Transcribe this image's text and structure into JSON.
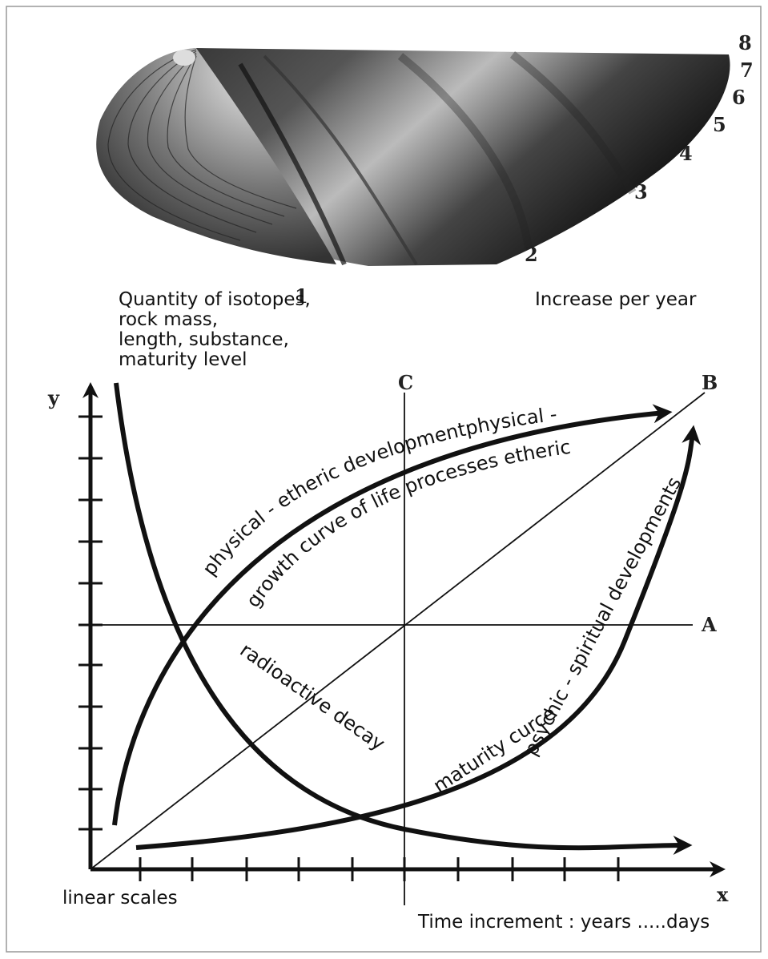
{
  "shell": {
    "growth_rings": [
      "1",
      "2",
      "3",
      "4",
      "5",
      "6",
      "7",
      "8"
    ]
  },
  "labels": {
    "quantity": [
      "Quantity of isotopes,",
      "rock mass,",
      "length, substance,",
      "maturity level"
    ],
    "increase": "Increase per year"
  },
  "graph": {
    "axes": {
      "y": "y",
      "x": "x"
    },
    "reference_lines": {
      "a": "A",
      "b": "B",
      "c": "C"
    },
    "curves": {
      "growth_upper": "physical - etheric developmentphysical -",
      "growth_lower": "growth curve of life processes etheric",
      "decay": "radioactive decay",
      "maturity": "maturity curce",
      "psychic": "psychic - spiritual developments"
    },
    "footer": {
      "scale": "linear scales",
      "time": "Time increment : years .....days"
    }
  }
}
